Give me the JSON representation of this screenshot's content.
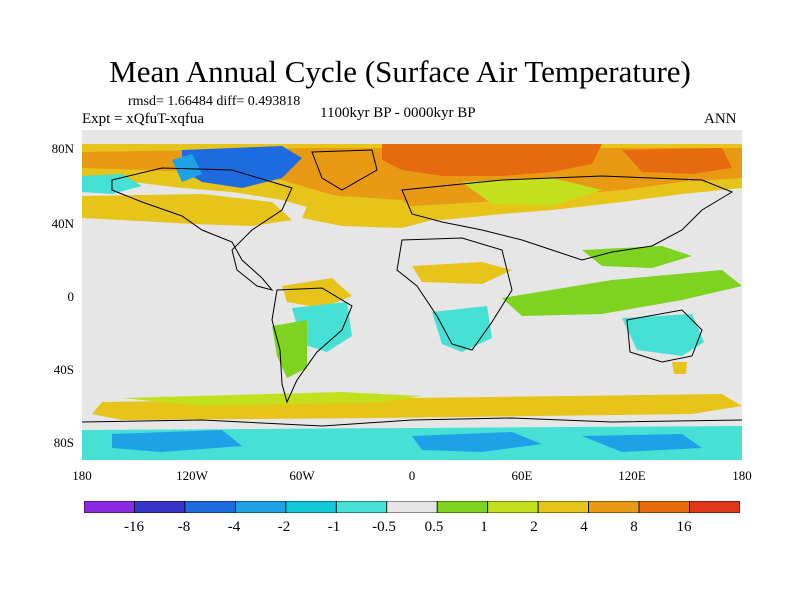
{
  "title": "Mean Annual Cycle (Surface Air Temperature)",
  "stats": "rmsd= 1.66484 diff= 0.493818",
  "experiment": "Expt = xQfuT-xqfua",
  "period": "1100kyr BP - 0000kyr BP",
  "season": "ANN",
  "lat_ticks": [
    "80N",
    "40N",
    "0",
    "40S",
    "80S"
  ],
  "lon_ticks": [
    "180",
    "120W",
    "60W",
    "0",
    "60E",
    "120E",
    "180"
  ],
  "legend": {
    "labels": [
      "-16",
      "-8",
      "-4",
      "-2",
      "-1",
      "-0.5",
      "0.5",
      "1",
      "2",
      "4",
      "8",
      "16"
    ],
    "colors": [
      "#8a2be2",
      "#3636c8",
      "#1e6be0",
      "#1fa1e8",
      "#12c8d6",
      "#46e0d4",
      "#e6e6e6",
      "#7ed321",
      "#c3e01e",
      "#e6c41a",
      "#e89a14",
      "#e86a0e",
      "#e0361a"
    ]
  }
}
